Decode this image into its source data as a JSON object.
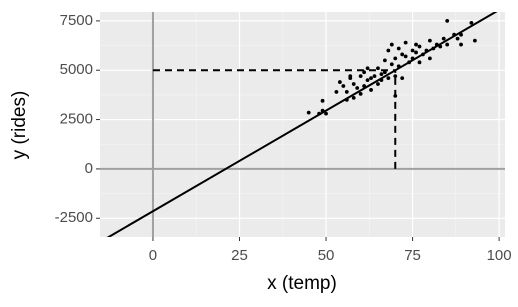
{
  "chart_data": {
    "type": "scatter",
    "x_label": "x (temp)",
    "y_label": "y (rides)",
    "x": [
      45,
      48,
      49,
      49,
      50,
      53,
      54,
      55,
      56,
      56,
      57,
      57,
      58,
      58,
      59,
      60,
      60,
      61,
      61,
      62,
      62,
      63,
      63,
      64,
      65,
      65,
      66,
      66,
      67,
      67,
      68,
      68,
      69,
      69,
      70,
      70,
      70,
      71,
      71,
      72,
      72,
      73,
      73,
      74,
      75,
      75,
      76,
      76,
      77,
      77,
      78,
      79,
      80,
      80,
      81,
      82,
      83,
      84,
      85,
      85,
      87,
      88,
      89,
      89,
      92,
      93
    ],
    "y": [
      2850,
      2800,
      3450,
      2950,
      2800,
      3900,
      4400,
      4200,
      3500,
      3900,
      4600,
      4700,
      3600,
      4300,
      4100,
      4700,
      3800,
      4900,
      4200,
      5100,
      4500,
      4600,
      4000,
      4700,
      4300,
      5100,
      4800,
      4500,
      5500,
      4900,
      6000,
      4600,
      5300,
      6300,
      4700,
      5600,
      3700,
      6100,
      5200,
      4600,
      5800,
      5700,
      6400,
      5400,
      6000,
      5600,
      6300,
      5900,
      5400,
      6200,
      5800,
      6000,
      6500,
      5600,
      6100,
      6300,
      6200,
      6600,
      7500,
      6300,
      6800,
      6600,
      6300,
      6800,
      7400,
      6500
    ],
    "color": "#000000",
    "fit_line": {
      "intercept": -2145,
      "slope": 102
    },
    "reference": {
      "x": 70,
      "y": 5000
    },
    "xlim": [
      -15.3,
      101.7
    ],
    "ylim": [
      -3450,
      7950
    ],
    "xticks": [
      0,
      25,
      50,
      75,
      100
    ],
    "yticks": [
      -2500,
      0,
      2500,
      5000,
      7500
    ],
    "x_minor": [
      12.5,
      37.5,
      62.5,
      87.5
    ],
    "y_minor": [
      -1250,
      1250,
      3750,
      6250
    ],
    "grid": true
  }
}
